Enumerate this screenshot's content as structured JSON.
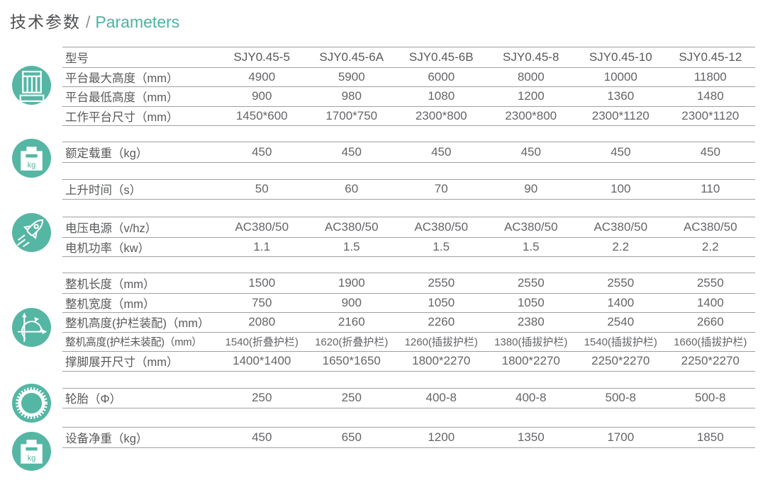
{
  "page": {
    "title_zh": "技术参数",
    "title_sep": "/",
    "title_en": "Parameters"
  },
  "colors": {
    "accent_teal": "#55b6a4",
    "title_en_teal": "#4bb3a0",
    "text_dark": "#58595b",
    "text_value": "#646568",
    "rule_gray": "#9fa0a2"
  },
  "icons": [
    {
      "name": "lift-platform-icon"
    },
    {
      "name": "load-weight-kg-icon"
    },
    {
      "name": "rocket-speed-icon"
    },
    {
      "name": "dimension-axes-icon"
    },
    {
      "name": "wheel-gear-icon"
    },
    {
      "name": "net-weight-kg-icon"
    }
  ],
  "table": {
    "groups": [
      {
        "rows": [
          {
            "label": "型号",
            "values": [
              "SJY0.45-5",
              "SJY0.45-6A",
              "SJY0.45-6B",
              "SJY0.45-8",
              "SJY0.45-10",
              "SJY0.45-12"
            ]
          },
          {
            "label": "平台最大高度（mm）",
            "values": [
              "4900",
              "5900",
              "6000",
              "8000",
              "10000",
              "11800"
            ]
          },
          {
            "label": "平台最低高度（mm）",
            "values": [
              "900",
              "980",
              "1080",
              "1200",
              "1360",
              "1480"
            ]
          },
          {
            "label": "工作平台尺寸（mm）",
            "values": [
              "1450*600",
              "1700*750",
              "2300*800",
              "2300*800",
              "2300*1120",
              "2300*1120"
            ]
          }
        ]
      },
      {
        "rows": [
          {
            "label": "额定载重（kg）",
            "values": [
              "450",
              "450",
              "450",
              "450",
              "450",
              "450"
            ]
          }
        ]
      },
      {
        "rows": [
          {
            "label": "上升时间（s）",
            "values": [
              "50",
              "60",
              "70",
              "90",
              "100",
              "110"
            ]
          }
        ]
      },
      {
        "rows": [
          {
            "label": "电压电源（v/hz）",
            "values": [
              "AC380/50",
              "AC380/50",
              "AC380/50",
              "AC380/50",
              "AC380/50",
              "AC380/50"
            ]
          },
          {
            "label": "电机功率（kw）",
            "values": [
              "1.1",
              "1.5",
              "1.5",
              "1.5",
              "2.2",
              "2.2"
            ]
          }
        ]
      },
      {
        "rows": [
          {
            "label": "整机长度（mm）",
            "values": [
              "1500",
              "1900",
              "2550",
              "2550",
              "2550",
              "2550"
            ]
          },
          {
            "label": "整机宽度（mm）",
            "values": [
              "750",
              "900",
              "1050",
              "1050",
              "1400",
              "1400"
            ]
          },
          {
            "label": "整机高度(护栏装配)（mm）",
            "values": [
              "2080",
              "2160",
              "2260",
              "2380",
              "2540",
              "2660"
            ]
          },
          {
            "label": "整机高度(护栏未装配)（mm）",
            "values": [
              "1540(折叠护栏)",
              "1620(折叠护栏)",
              "1260(插拔护栏)",
              "1380(插拔护栏)",
              "1540(插拔护栏)",
              "1660(插拔护栏)"
            ]
          },
          {
            "label": "撑脚展开尺寸（mm）",
            "values": [
              "1400*1400",
              "1650*1650",
              "1800*2270",
              "1800*2270",
              "2250*2270",
              "2250*2270"
            ]
          }
        ]
      },
      {
        "rows": [
          {
            "label": "轮胎（Φ）",
            "values": [
              "250",
              "250",
              "400-8",
              "400-8",
              "500-8",
              "500-8"
            ]
          }
        ]
      },
      {
        "rows": [
          {
            "label": "设备净重（kg）",
            "values": [
              "450",
              "650",
              "1200",
              "1350",
              "1700",
              "1850"
            ]
          }
        ]
      }
    ]
  }
}
